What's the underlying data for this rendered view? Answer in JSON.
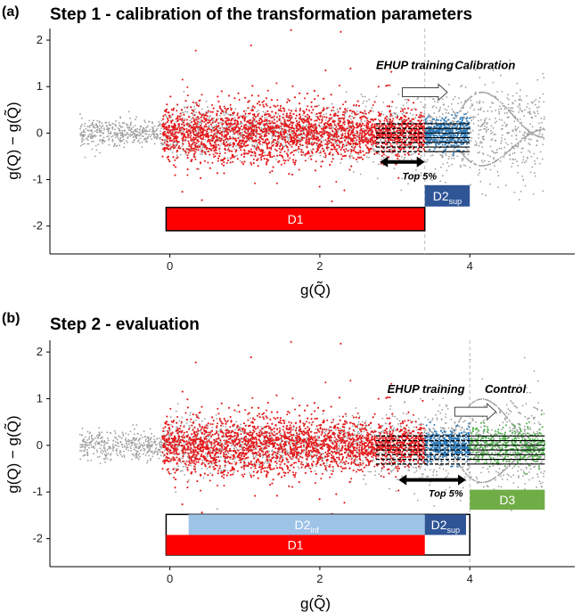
{
  "chart_data": [
    {
      "panel": "(a)",
      "type": "scatter",
      "title": "Step 1 - calibration of the transformation parameters",
      "xlabel": "g(Q̃)",
      "ylabel": "g(Q) − g(Q̃)",
      "xlim": [
        -1.6,
        5.4
      ],
      "ylim": [
        -2.6,
        2.25
      ],
      "xticks": [
        0,
        2,
        4
      ],
      "yticks": [
        -2,
        -1,
        0,
        1,
        2
      ],
      "grid": false,
      "cutoff_x": 3.4,
      "series": [
        {
          "name": "",
          "color": "#9e9e9e",
          "x_range": [
            -1.2,
            5.0
          ],
          "y_center": 0
        },
        {
          "name": "",
          "color": "#e41a1c",
          "x_range": [
            -0.1,
            3.4
          ],
          "y_center": 0
        },
        {
          "name": "",
          "color": "#2a79b8",
          "x_range": [
            3.4,
            4.0
          ],
          "y_center": 0
        }
      ],
      "annotations": [
        {
          "text": "EHUP training",
          "x": 2.75,
          "y": 1.38
        },
        {
          "text": "Calibration",
          "x": 3.8,
          "y": 1.38
        },
        {
          "text": "Top 5%",
          "x": 3.1,
          "y": -1.0
        }
      ],
      "boxes": [
        {
          "label": "D1",
          "sub": "",
          "x0": -0.05,
          "x1": 3.4,
          "y0": -2.1,
          "y1": -1.6,
          "color": "#ff0000"
        },
        {
          "label": "D2",
          "sub": "sup",
          "x0": 3.4,
          "x1": 4.0,
          "y0": -1.58,
          "y1": -1.12,
          "color": "#2f5597"
        }
      ]
    },
    {
      "panel": "(b)",
      "type": "scatter",
      "title": "Step 2 - evaluation",
      "xlabel": "g(Q̃)",
      "ylabel": "g(Q) − g(Q̃)",
      "xlim": [
        -1.6,
        5.4
      ],
      "ylim": [
        -2.6,
        2.25
      ],
      "xticks": [
        0,
        2,
        4
      ],
      "yticks": [
        -2,
        -1,
        0,
        1,
        2
      ],
      "grid": false,
      "cutoff_x": 4.0,
      "series": [
        {
          "name": "",
          "color": "#9e9e9e",
          "x_range": [
            -1.2,
            5.0
          ],
          "y_center": 0
        },
        {
          "name": "",
          "color": "#e41a1c",
          "x_range": [
            -0.1,
            3.4
          ],
          "y_center": 0
        },
        {
          "name": "",
          "color": "#2a79b8",
          "x_range": [
            3.4,
            4.0
          ],
          "y_center": 0
        },
        {
          "name": "",
          "color": "#4daf4a",
          "x_range": [
            4.0,
            5.0
          ],
          "y_center": 0
        }
      ],
      "annotations": [
        {
          "text": "EHUP training",
          "x": 2.9,
          "y": 1.12
        },
        {
          "text": "Control",
          "x": 4.2,
          "y": 1.12
        },
        {
          "text": "Top 5%",
          "x": 3.45,
          "y": -1.1
        }
      ],
      "boxes": [
        {
          "label": "D2",
          "sub": "inf",
          "x0": 0.25,
          "x1": 3.4,
          "y0": -1.92,
          "y1": -1.48,
          "color": "#9dc3e6"
        },
        {
          "label": "D2",
          "sub": "sup",
          "x0": 3.4,
          "x1": 3.95,
          "y0": -1.92,
          "y1": -1.48,
          "color": "#2f5597"
        },
        {
          "label": "D1",
          "sub": "",
          "x0": -0.05,
          "x1": 3.4,
          "y0": -2.35,
          "y1": -1.92,
          "color": "#ff0000"
        },
        {
          "label": "D3",
          "sub": "",
          "x0": 4.0,
          "x1": 5.0,
          "y0": -1.38,
          "y1": -0.95,
          "color": "#70ad47"
        }
      ]
    }
  ]
}
